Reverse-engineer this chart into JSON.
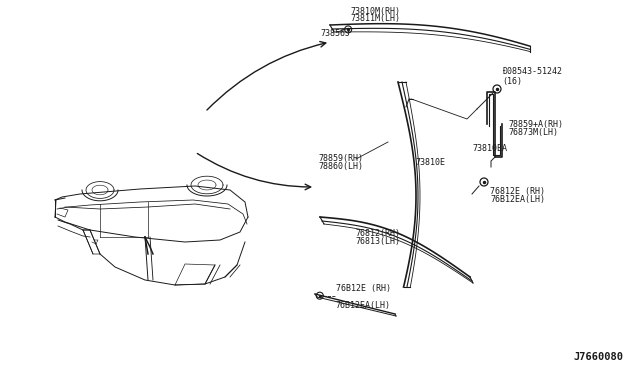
{
  "bg_color": "#ffffff",
  "line_color": "#1a1a1a",
  "diagram_number": "J7660080",
  "font_size": 6.0,
  "labels": {
    "73810M_RH": "73810M(RH)",
    "73811M_LH": "73811M(LH)",
    "73856J": "73856J",
    "08543_51242": "Ð08543-51242\n(16)",
    "73810E": "73810E",
    "78859_RH_plus": "78859+A(RH)",
    "76873M_LH": "76873M(LH)",
    "73810EA": "73810EA",
    "78859_RH": "78859(RH)",
    "78860_LH": "78860(LH)",
    "76812_RH": "76812(RH)",
    "76813_LH": "76813(LH)",
    "76812E_RH": "76812E (RH)",
    "76B12EA_LH": "76B12EA(LH)",
    "76B12E_RH2": "76B12E (RH)",
    "76B12EA_LH2": "76B12EA(LH)"
  }
}
